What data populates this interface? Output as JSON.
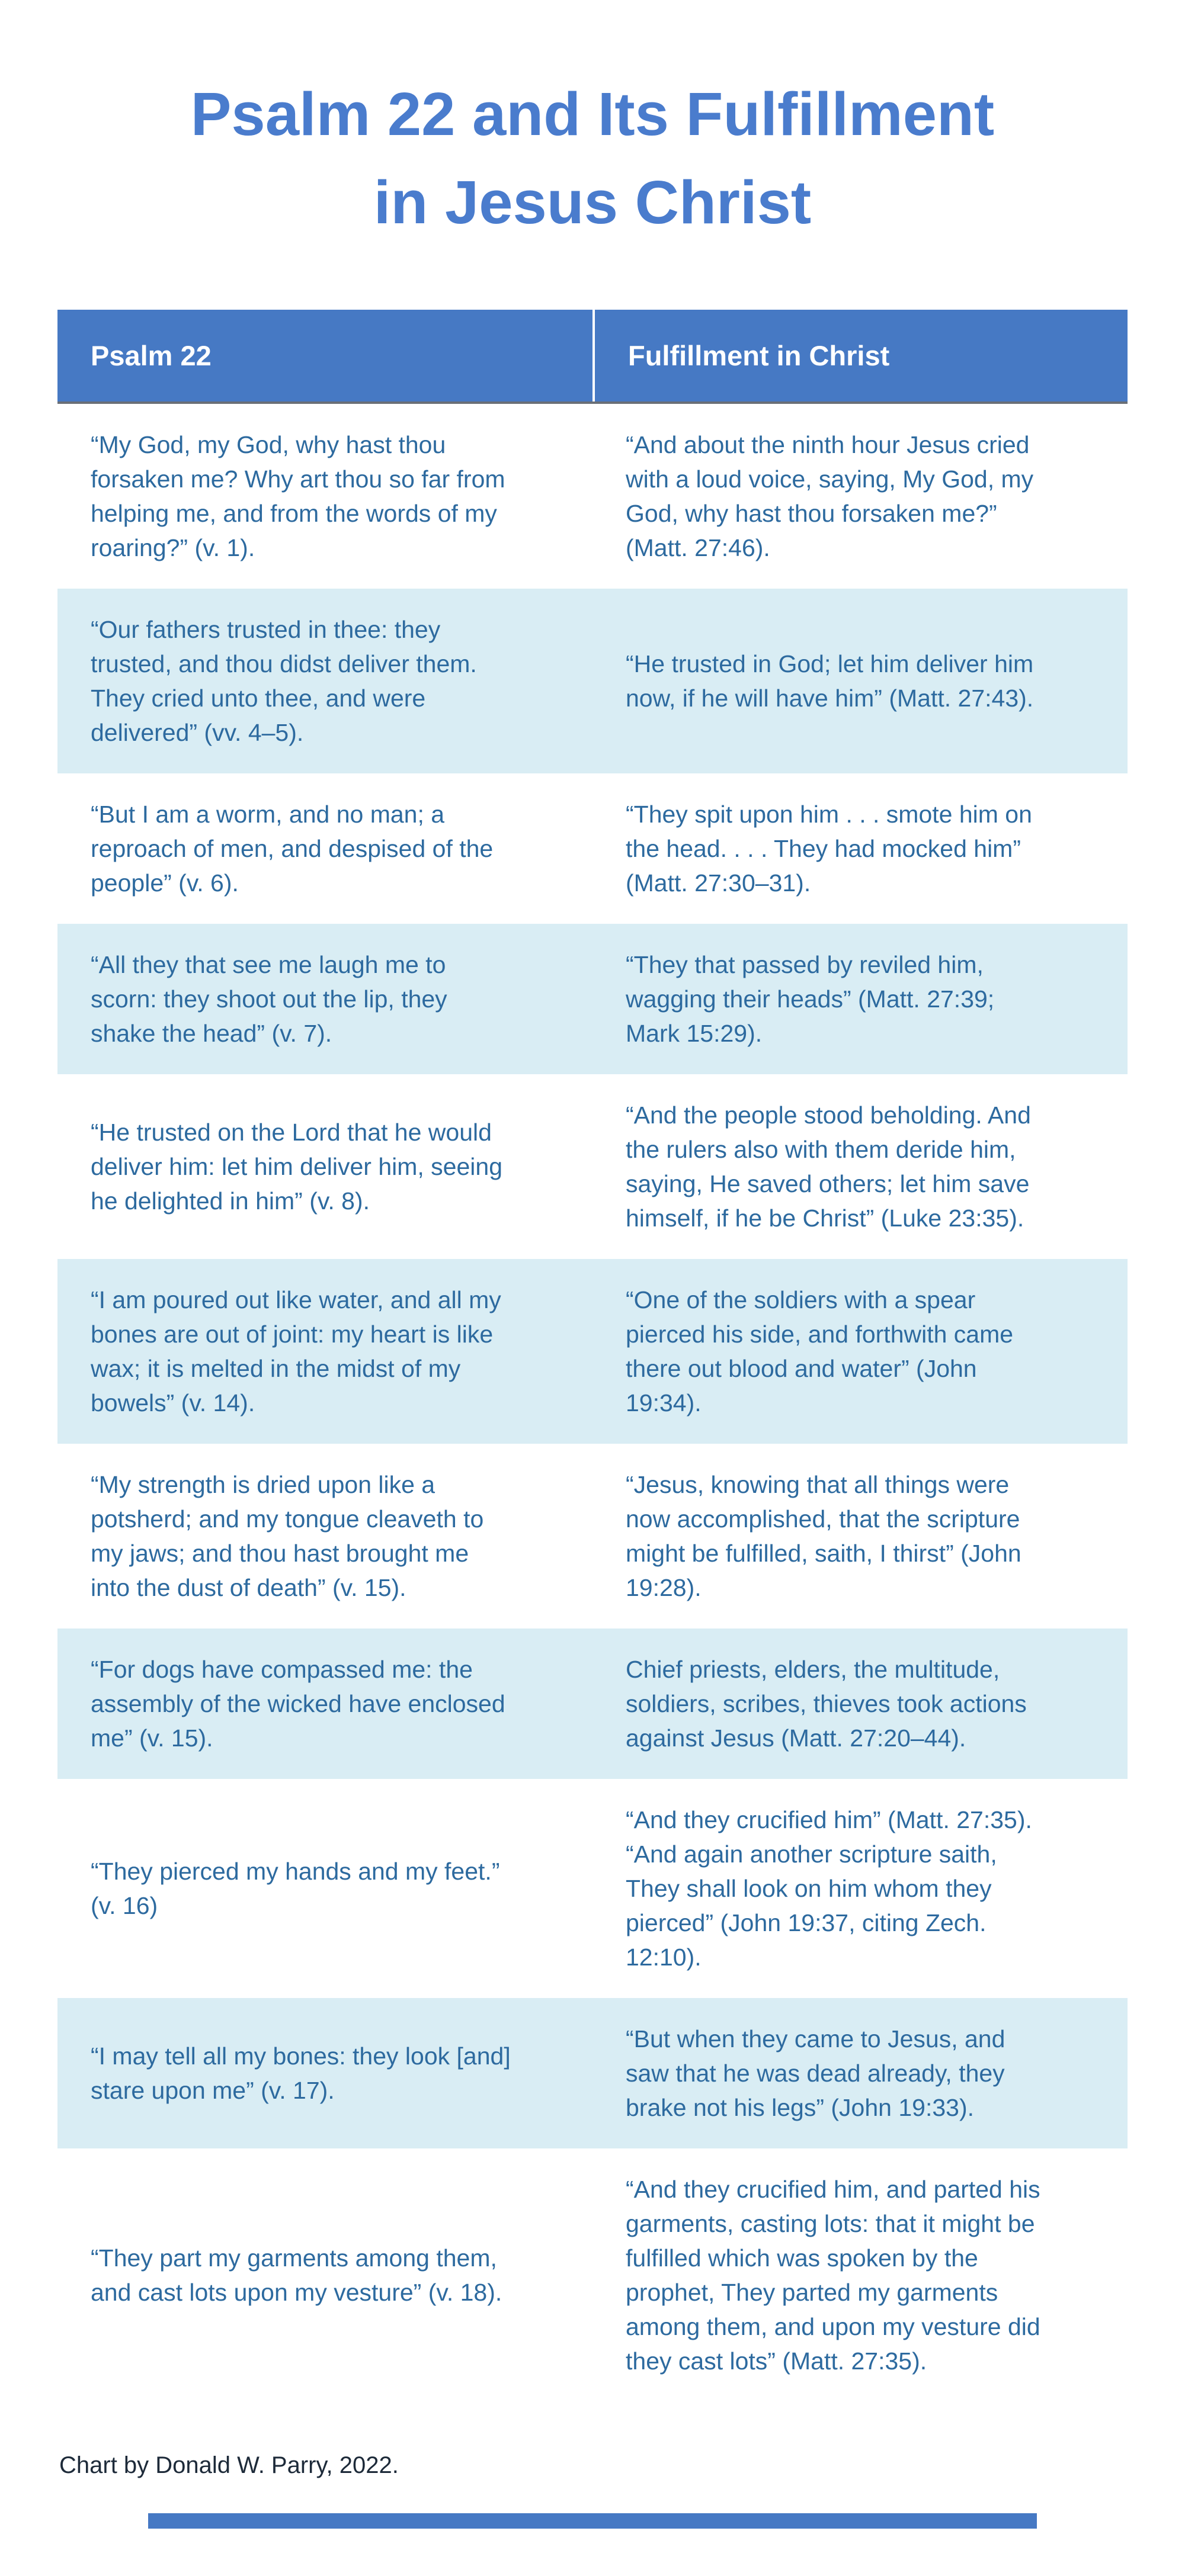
{
  "page": {
    "title_line1": "Psalm 22 and Its Fulfillment",
    "title_line2": "in Jesus Christ"
  },
  "table": {
    "columns": [
      "Psalm 22",
      "Fulfillment in Christ"
    ],
    "rows": [
      {
        "psalm": "“My God, my God, why hast thou forsaken me? Why art thou so far from helping me, and from the words of my roaring?” (v. 1).",
        "fulfillment": "“And about the ninth hour Jesus cried with a loud voice, saying, My God, my God, why hast thou forsaken me?” (Matt. 27:46)."
      },
      {
        "psalm": "“Our fathers trusted in thee: they trusted, and thou didst deliver them. They cried unto thee, and were delivered” (vv. 4–5).",
        "fulfillment": "“He trusted in God; let him deliver him now, if he will have him” (Matt. 27:43)."
      },
      {
        "psalm": "“But I am a worm, and no man; a reproach of men, and despised of the people” (v. 6).",
        "fulfillment": "“They spit upon him . . . smote him on the head. . . . They had mocked him” (Matt. 27:30–31)."
      },
      {
        "psalm": "“All they that see me laugh me to scorn: they shoot out the lip, they shake the head” (v. 7).",
        "fulfillment": "“They that passed by reviled him, wagging their heads” (Matt. 27:39; Mark 15:29)."
      },
      {
        "psalm": "“He trusted on the Lord that he would deliver him: let him deliver him, seeing he delighted in him” (v. 8).",
        "fulfillment": "“And the people stood beholding. And the rulers also with them deride him, saying, He saved others; let him save himself, if he be Christ” (Luke 23:35)."
      },
      {
        "psalm": "“I am poured out like water, and all my bones are out of joint: my heart is like wax; it is melted in the midst of my bowels” (v. 14).",
        "fulfillment": "“One of the soldiers with a spear pierced his side, and forthwith came there out blood and water” (John 19:34)."
      },
      {
        "psalm": "“My strength is dried upon like a potsherd; and my tongue cleaveth to my jaws; and thou hast brought me into the dust of death” (v. 15).",
        "fulfillment": "“Jesus, knowing that all things were now accomplished, that the scripture might be fulfilled, saith, I thirst” (John 19:28)."
      },
      {
        "psalm": "“For dogs have compassed me: the assembly of the wicked have enclosed me” (v. 15).",
        "fulfillment": "Chief priests, elders, the multitude, soldiers, scribes, thieves took actions against Jesus (Matt. 27:20–44)."
      },
      {
        "psalm": "“They pierced my hands and my feet.” (v. 16)",
        "fulfillment": "“And they crucified him” (Matt. 27:35). “And again another scripture saith, They shall look on him whom they pierced” (John 19:37, citing Zech. 12:10)."
      },
      {
        "psalm": "“I may tell all my bones: they look [and] stare upon me” (v. 17).",
        "fulfillment": "“But when they came to Jesus, and saw that he was dead already, they brake not his legs” (John 19:33)."
      },
      {
        "psalm": "“They part my garments among them, and cast lots upon my vesture” (v. 18).",
        "fulfillment": "“And they crucified him, and parted his garments, casting lots: that it might be fulfilled which was spoken by the prophet, They parted my garments among them, and upon my vesture did they cast lots” (Matt. 27:35)."
      }
    ]
  },
  "footer": {
    "credit": "Chart by Donald W. Parry, 2022."
  },
  "colors": {
    "header_bg": "#4679c4",
    "row_alt_bg": "#d9edf4",
    "body_text": "#2d6a9f",
    "title_text": "#4a7ccd",
    "footer_text": "#1d2a39"
  }
}
